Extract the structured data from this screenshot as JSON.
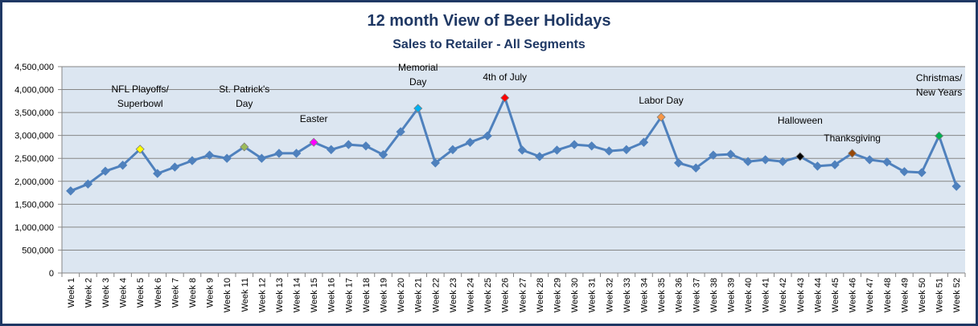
{
  "chart_data": {
    "type": "line",
    "title": "12 month View of Beer Holidays",
    "subtitle": "Sales to Retailer - All Segments",
    "xlabel": "",
    "ylabel": "",
    "ylim": [
      0,
      4500000
    ],
    "yticks": [
      0,
      500000,
      1000000,
      1500000,
      2000000,
      2500000,
      3000000,
      3500000,
      4000000,
      4500000
    ],
    "ytick_labels": [
      "0",
      "500,000",
      "1,000,000",
      "1,500,000",
      "2,000,000",
      "2,500,000",
      "3,000,000",
      "3,500,000",
      "4,000,000",
      "4,500,000"
    ],
    "grid": true,
    "legend": "none",
    "categories": [
      "Week 1",
      "Week 2",
      "Week 3",
      "Week 4",
      "Week 5",
      "Week 6",
      "Week 7",
      "Week 8",
      "Week 9",
      "Week 10",
      "Week 11",
      "Week 12",
      "Week 13",
      "Week 14",
      "Week 15",
      "Week 16",
      "Week 17",
      "Week 18",
      "Week 19",
      "Week 20",
      "Week 21",
      "Week 22",
      "Week 23",
      "Week 24",
      "Week 25",
      "Week 26",
      "Week 27",
      "Week 28",
      "Week 29",
      "Week 30",
      "Week 31",
      "Week 32",
      "Week 33",
      "Week 34",
      "Week 35",
      "Week 36",
      "Week 37",
      "Week 38",
      "Week 39",
      "Week 40",
      "Week 41",
      "Week 42",
      "Week 43",
      "Week 44",
      "Week 45",
      "Week 46",
      "Week 47",
      "Week 48",
      "Week 49",
      "Week 50",
      "Week 51",
      "Week 52"
    ],
    "series": [
      {
        "name": "Sales",
        "color": "#4f81bd",
        "values": [
          1790000,
          1940000,
          2220000,
          2350000,
          2700000,
          2170000,
          2310000,
          2450000,
          2570000,
          2500000,
          2750000,
          2500000,
          2610000,
          2610000,
          2850000,
          2690000,
          2800000,
          2770000,
          2580000,
          3080000,
          3590000,
          2400000,
          2690000,
          2850000,
          2990000,
          3820000,
          2680000,
          2540000,
          2680000,
          2800000,
          2770000,
          2660000,
          2690000,
          2850000,
          3400000,
          2400000,
          2290000,
          2570000,
          2590000,
          2430000,
          2470000,
          2430000,
          2540000,
          2330000,
          2360000,
          2610000,
          2470000,
          2420000,
          2210000,
          2190000,
          2990000,
          1890000
        ]
      }
    ],
    "annotations": [
      {
        "week": 5,
        "lines": [
          "NFL Playoffs/",
          "Superbowl"
        ],
        "marker_color": "#ffff00"
      },
      {
        "week": 11,
        "lines": [
          "St. Patrick's",
          "Day"
        ],
        "marker_color": "#9bbb59"
      },
      {
        "week": 15,
        "lines": [
          "Easter"
        ],
        "marker_color": "#ff00ff"
      },
      {
        "week": 21,
        "lines": [
          "Memorial",
          "Day"
        ],
        "marker_color": "#00b0f0"
      },
      {
        "week": 26,
        "lines": [
          "4th of July"
        ],
        "marker_color": "#ff0000"
      },
      {
        "week": 35,
        "lines": [
          "Labor Day"
        ],
        "marker_color": "#f79646"
      },
      {
        "week": 43,
        "lines": [
          "Halloween"
        ],
        "marker_color": "#000000"
      },
      {
        "week": 46,
        "lines": [
          "Thanksgiving"
        ],
        "marker_color": "#984807"
      },
      {
        "week": 51,
        "lines": [
          "Christmas/",
          "New Years"
        ],
        "marker_color": "#00b050"
      }
    ]
  },
  "colors": {
    "plot_bg": "#dce6f1",
    "border": "#1f3864",
    "grid": "#868686",
    "title": "#1f3864"
  }
}
